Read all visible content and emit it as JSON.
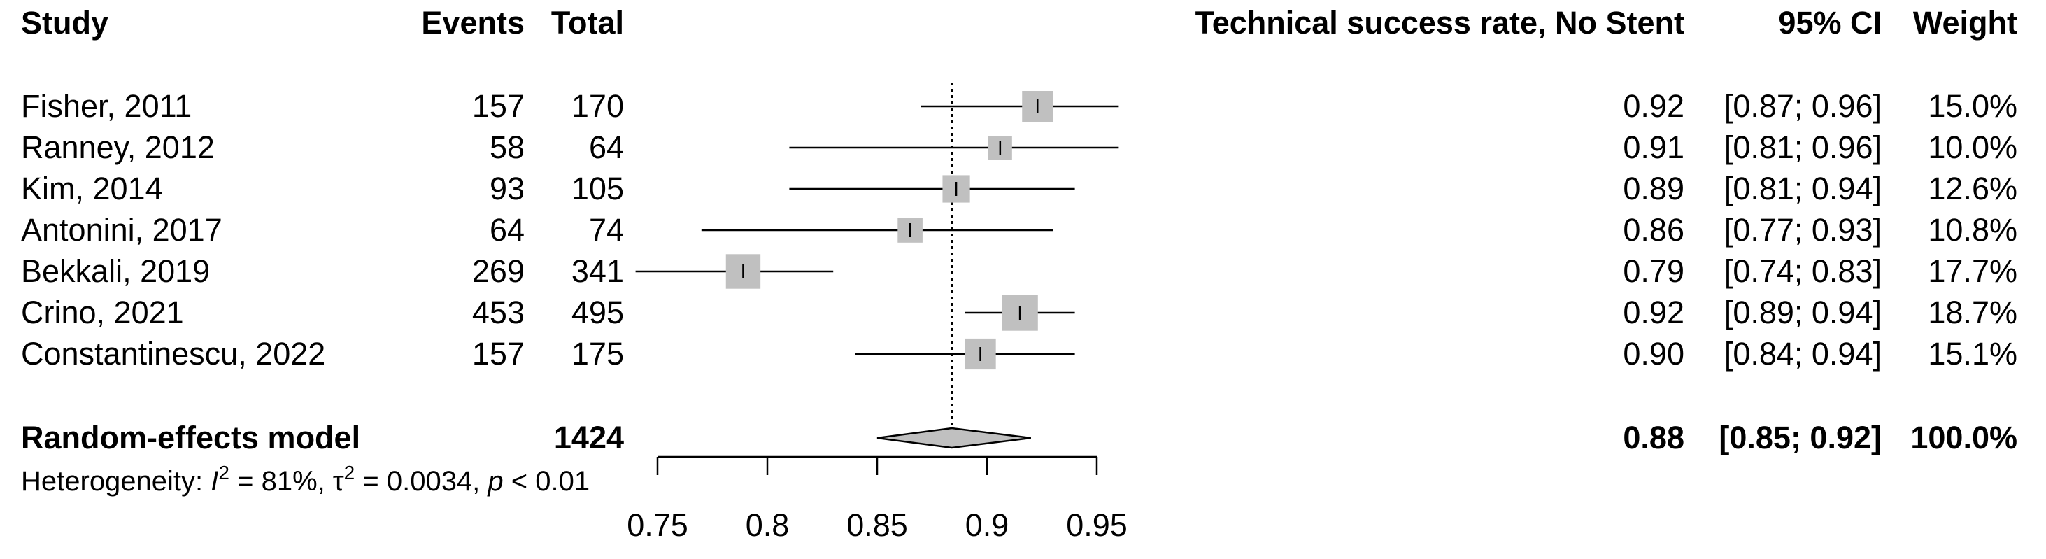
{
  "chart_data": {
    "type": "forest",
    "headers": {
      "study": "Study",
      "events": "Events",
      "total": "Total",
      "effect": "Technical success rate, No Stent",
      "ci": "95% CI",
      "weight": "Weight"
    },
    "studies": [
      {
        "label": "Fisher, 2011",
        "events": "157",
        "total": "170",
        "est": 0.923,
        "lo": 0.87,
        "hi": 0.96,
        "est_text": "0.92",
        "ci_text": "[0.87; 0.96]",
        "weight_text": "15.0%",
        "weight": 15.0
      },
      {
        "label": "Ranney, 2012",
        "events": "58",
        "total": "64",
        "est": 0.906,
        "lo": 0.81,
        "hi": 0.96,
        "est_text": "0.91",
        "ci_text": "[0.81; 0.96]",
        "weight_text": "10.0%",
        "weight": 10.0
      },
      {
        "label": "Kim, 2014",
        "events": "93",
        "total": "105",
        "est": 0.886,
        "lo": 0.81,
        "hi": 0.94,
        "est_text": "0.89",
        "ci_text": "[0.81; 0.94]",
        "weight_text": "12.6%",
        "weight": 12.6
      },
      {
        "label": "Antonini, 2017",
        "events": "64",
        "total": "74",
        "est": 0.865,
        "lo": 0.77,
        "hi": 0.93,
        "est_text": "0.86",
        "ci_text": "[0.77; 0.93]",
        "weight_text": "10.8%",
        "weight": 10.8
      },
      {
        "label": "Bekkali, 2019",
        "events": "269",
        "total": "341",
        "est": 0.789,
        "lo": 0.74,
        "hi": 0.83,
        "est_text": "0.79",
        "ci_text": "[0.74; 0.83]",
        "weight_text": "17.7%",
        "weight": 17.7
      },
      {
        "label": "Crino, 2021",
        "events": "453",
        "total": "495",
        "est": 0.915,
        "lo": 0.89,
        "hi": 0.94,
        "est_text": "0.92",
        "ci_text": "[0.89; 0.94]",
        "weight_text": "18.7%",
        "weight": 18.7
      },
      {
        "label": "Constantinescu, 2022",
        "events": "157",
        "total": "175",
        "est": 0.897,
        "lo": 0.84,
        "hi": 0.94,
        "est_text": "0.90",
        "ci_text": "[0.84; 0.94]",
        "weight_text": "15.1%",
        "weight": 15.1
      }
    ],
    "pooled": {
      "label": "Random-effects model",
      "total": "1424",
      "est": 0.884,
      "lo": 0.85,
      "hi": 0.92,
      "est_text": "0.88",
      "ci_text": "[0.85; 0.92]",
      "weight_text": "100.0%"
    },
    "heterogeneity": {
      "prefix": "Heterogeneity: ",
      "i2_symbol": "I",
      "i2_sup": "2",
      "i2_value": " = 81%, ",
      "tau_symbol": "τ",
      "tau_sup": "2",
      "tau_value": " = 0.0034, ",
      "p_symbol": "p",
      "p_value": " < 0.01"
    },
    "xaxis": {
      "ticks": [
        0.75,
        0.8,
        0.85,
        0.9,
        0.95
      ],
      "tick_labels": [
        "0.75",
        "0.8",
        "0.85",
        "0.9",
        "0.95"
      ],
      "range": [
        0.75,
        0.95
      ]
    },
    "reference_line": 0.884,
    "colors": {
      "square": "#c0c0c0",
      "diamond": "#c0c0c0",
      "line": "#000000"
    }
  }
}
